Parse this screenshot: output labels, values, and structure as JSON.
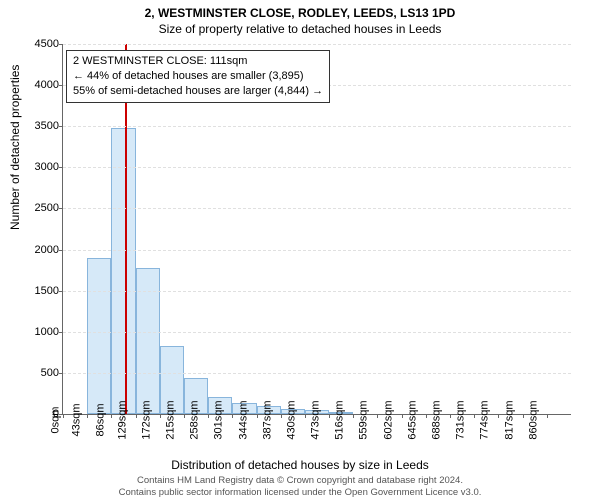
{
  "title_main": "2, WESTMINSTER CLOSE, RODLEY, LEEDS, LS13 1PD",
  "title_sub": "Size of property relative to detached houses in Leeds",
  "ylabel": "Number of detached properties",
  "xlabel": "Distribution of detached houses by size in Leeds",
  "info_box": {
    "line1": "2 WESTMINSTER CLOSE: 111sqm",
    "line2": "← 44% of detached houses are smaller (3,895)",
    "line3": "55% of semi-detached houses are larger (4,844) →"
  },
  "chart": {
    "type": "histogram",
    "ylim": [
      0,
      4500
    ],
    "ytick_step": 500,
    "xlim_bins": 21,
    "xticks": [
      "0sqm",
      "43sqm",
      "86sqm",
      "129sqm",
      "172sqm",
      "215sqm",
      "258sqm",
      "301sqm",
      "344sqm",
      "387sqm",
      "430sqm",
      "473sqm",
      "516sqm",
      "559sqm",
      "602sqm",
      "645sqm",
      "688sqm",
      "731sqm",
      "774sqm",
      "817sqm",
      "860sqm"
    ],
    "values": [
      0,
      1900,
      3480,
      1770,
      830,
      440,
      210,
      130,
      95,
      65,
      50,
      30,
      0,
      0,
      0,
      0,
      0,
      0,
      0,
      0,
      0
    ],
    "bar_fill": "#d6e9f8",
    "bar_stroke": "#88b5dc",
    "grid_color": "#e0e0e0",
    "background_color": "#ffffff",
    "marker_color": "#cc0000",
    "marker_sqm": 111,
    "xmax_sqm": 903,
    "bin_width_sqm": 43
  },
  "footer": {
    "line1": "Contains HM Land Registry data © Crown copyright and database right 2024.",
    "line2": "Contains public sector information licensed under the Open Government Licence v3.0."
  }
}
